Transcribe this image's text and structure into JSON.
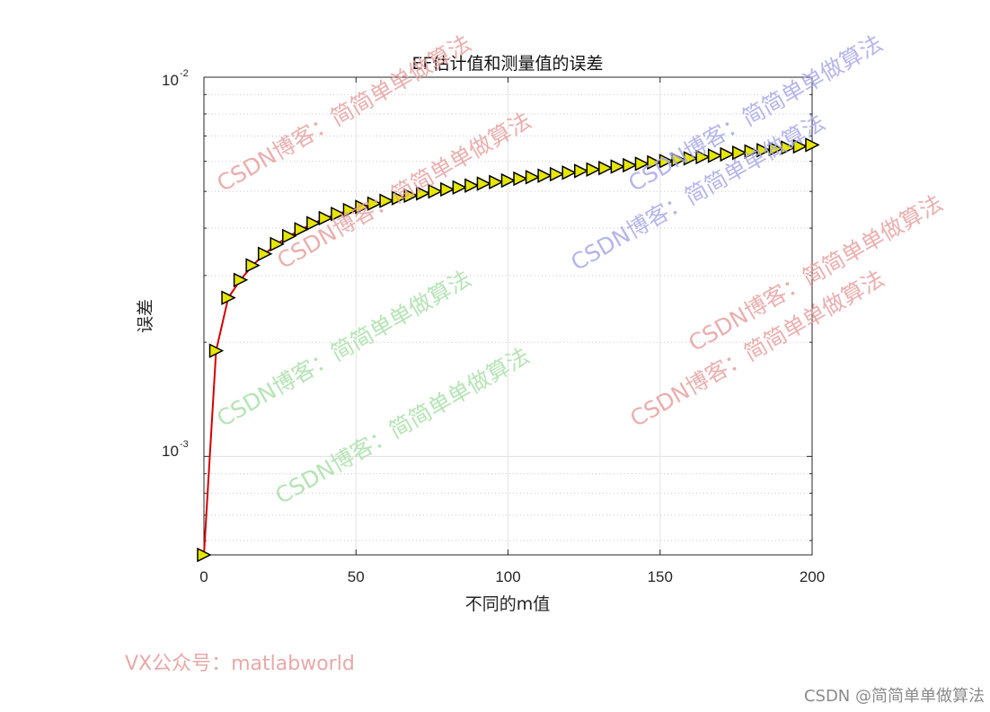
{
  "chart_data": {
    "type": "line",
    "title": "EF估计值和测量值的误差",
    "xlabel": "不同的m值",
    "ylabel": "误差",
    "xlim": [
      0,
      200
    ],
    "ylim": [
      0.00055,
      0.01
    ],
    "yscale": "log",
    "grid": true,
    "line_color": "#d40000",
    "marker": "triangle-right",
    "marker_fill": "#e6e600",
    "marker_edge": "#000000",
    "x_ticks": [
      "0",
      "50",
      "100",
      "150",
      "200"
    ],
    "y_ticks": [
      {
        "base": "10",
        "exp": "-3"
      },
      {
        "base": "10",
        "exp": "-2"
      }
    ],
    "x": [
      0,
      4,
      8,
      12,
      16,
      20,
      24,
      28,
      32,
      36,
      40,
      44,
      48,
      52,
      56,
      60,
      64,
      68,
      72,
      76,
      80,
      84,
      88,
      92,
      96,
      100,
      104,
      108,
      112,
      116,
      120,
      124,
      128,
      132,
      136,
      140,
      144,
      148,
      152,
      156,
      160,
      164,
      168,
      172,
      176,
      180,
      184,
      188,
      192,
      196,
      200
    ],
    "y": [
      0.00055,
      0.0019,
      0.00262,
      0.00292,
      0.00319,
      0.00342,
      0.00363,
      0.00381,
      0.00397,
      0.00412,
      0.00425,
      0.00436,
      0.00446,
      0.00455,
      0.00464,
      0.00472,
      0.0048,
      0.00487,
      0.00494,
      0.005,
      0.00506,
      0.00512,
      0.00518,
      0.00524,
      0.00529,
      0.00534,
      0.0054,
      0.00545,
      0.0055,
      0.00555,
      0.0056,
      0.00566,
      0.00571,
      0.00576,
      0.00581,
      0.00586,
      0.00591,
      0.00596,
      0.00601,
      0.00606,
      0.00611,
      0.00616,
      0.00621,
      0.00626,
      0.00632,
      0.00637,
      0.00642,
      0.00647,
      0.00652,
      0.00657,
      0.00663
    ]
  },
  "watermarks": [
    {
      "text": "CSDN博客：简简单单做算法",
      "color": "#e8a0a0"
    },
    {
      "text": "CSDN博客：简简单单做算法",
      "color": "#e8a0a0"
    },
    {
      "text": "CSDN博客：简简单单做算法",
      "color": "#a8a8e8"
    },
    {
      "text": "CSDN博客：简简单单做算法",
      "color": "#a8a8e8"
    },
    {
      "text": "CSDN博客：简简单单做算法",
      "color": "#e8a0a0"
    },
    {
      "text": "CSDN博客：简简单单做算法",
      "color": "#e8a0a0"
    },
    {
      "text": "CSDN博客：简简单单做算法",
      "color": "#a8e0a8"
    },
    {
      "text": "CSDN博客：简简单单做算法",
      "color": "#a8e0a8"
    }
  ],
  "footer": {
    "vx_label": "VX公众号：matlabworld",
    "vx_color": "#e8a8a8",
    "csdn_label": "CSDN @简简单单做算法",
    "csdn_color": "#8a8a8a"
  }
}
